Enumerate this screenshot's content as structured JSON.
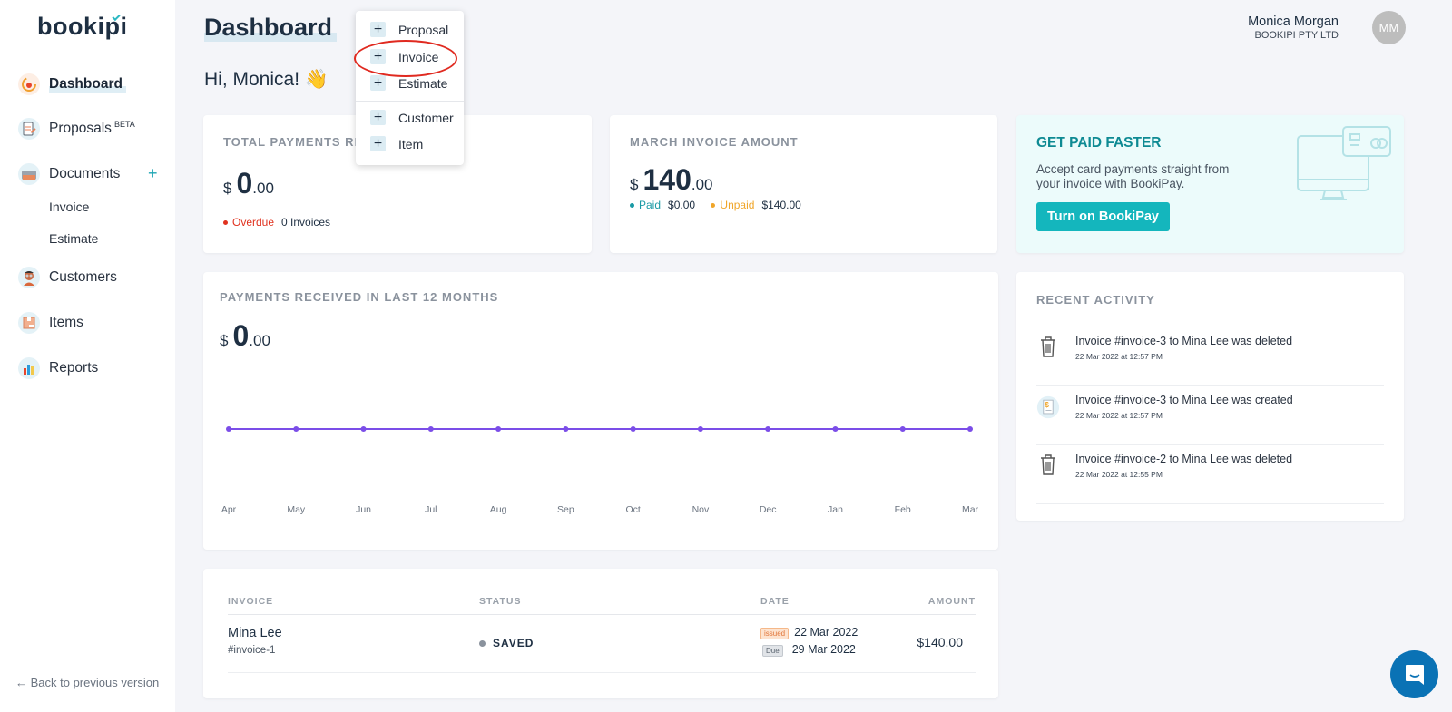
{
  "app": {
    "logo": "bookipi"
  },
  "sidebar": {
    "items": [
      {
        "label": "Dashboard",
        "icon": "dashboard-icon",
        "active": true
      },
      {
        "label": "Proposals",
        "badge": "BETA",
        "icon": "proposals-icon"
      },
      {
        "label": "Documents",
        "icon": "documents-icon",
        "add": "+"
      },
      {
        "label": "Customers",
        "icon": "customers-icon"
      },
      {
        "label": "Items",
        "icon": "items-icon"
      },
      {
        "label": "Reports",
        "icon": "reports-icon"
      }
    ],
    "sub_items": [
      "Invoice",
      "Estimate"
    ],
    "back_link": "← Back to previous version"
  },
  "header": {
    "title": "Dashboard",
    "greeting": "Hi, Monica! 👋",
    "user": {
      "name": "Monica Morgan",
      "company": "BOOKIPI PTY LTD",
      "initials": "MM"
    }
  },
  "create_menu": {
    "items": [
      "Proposal",
      "Invoice",
      "Estimate",
      "Customer",
      "Item"
    ],
    "highlighted": "Invoice"
  },
  "cards": {
    "total_payments": {
      "title": "TOTAL PAYMENTS RE",
      "currency": "$",
      "int": "0",
      "dec": ".00",
      "overdue_label": "Overdue",
      "overdue_value": "0 Invoices"
    },
    "march_invoice": {
      "title": "MARCH INVOICE AMOUNT",
      "currency": "$",
      "int": "140",
      "dec": ".00",
      "paid_label": "Paid",
      "paid_value": "$0.00",
      "unpaid_label": "Unpaid",
      "unpaid_value": "$140.00"
    },
    "get_paid": {
      "title": "GET PAID FASTER",
      "line1": "Accept card payments straight from",
      "line2": "your invoice with BookiPay.",
      "button": "Turn on BookiPay"
    },
    "payments_12m": {
      "title": "PAYMENTS RECEIVED IN LAST 12 MONTHS",
      "currency": "$",
      "int": "0",
      "dec": ".00"
    },
    "recent_activity": {
      "title": "RECENT ACTIVITY",
      "items": [
        {
          "icon": "trash-icon",
          "text": "Invoice #invoice-3 to Mina Lee was deleted",
          "time": "22 Mar 2022 at 12:57 PM"
        },
        {
          "icon": "invoice-created-icon",
          "text": "Invoice #invoice-3 to Mina Lee was created",
          "time": "22 Mar 2022 at 12:57 PM"
        },
        {
          "icon": "trash-icon",
          "text": "Invoice #invoice-2 to Mina Lee was deleted",
          "time": "22 Mar 2022 at 12:55 PM"
        }
      ]
    }
  },
  "chart_data": {
    "type": "line",
    "title": "PAYMENTS RECEIVED IN LAST 12 MONTHS",
    "categories": [
      "Apr",
      "May",
      "Jun",
      "Jul",
      "Aug",
      "Sep",
      "Oct",
      "Nov",
      "Dec",
      "Jan",
      "Feb",
      "Mar"
    ],
    "values": [
      0,
      0,
      0,
      0,
      0,
      0,
      0,
      0,
      0,
      0,
      0,
      0
    ],
    "xlabel": "",
    "ylabel": "",
    "grid": false,
    "color": "#7b4de8"
  },
  "invoice_table": {
    "headers": [
      "INVOICE",
      "STATUS",
      "DATE",
      "AMOUNT"
    ],
    "rows": [
      {
        "customer": "Mina Lee",
        "number": "#invoice-1",
        "status": "SAVED",
        "issued_tag": "issued",
        "issued": "22 Mar 2022",
        "due_tag": "Due",
        "due": "29 Mar 2022",
        "amount": "$140.00"
      }
    ]
  },
  "colors": {
    "accent": "#14b6bd",
    "overdue": "#e0321f",
    "paid": "#1a9aa5",
    "unpaid": "#f0a62a",
    "chart": "#7b4de8",
    "chat": "#0a72b5"
  }
}
